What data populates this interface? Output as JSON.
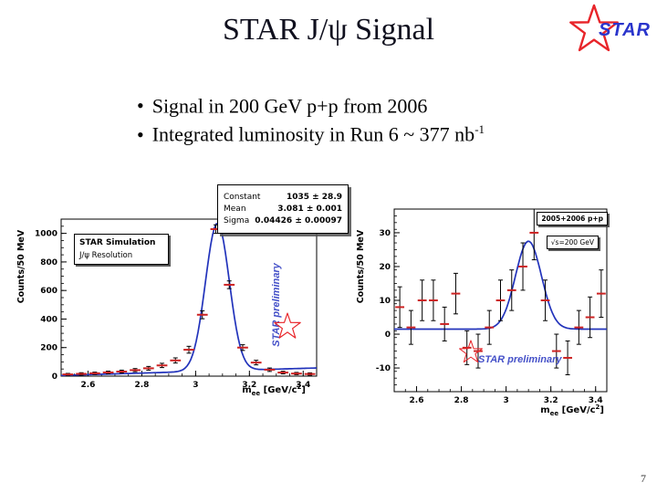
{
  "slide": {
    "title": "STAR J/ψ Signal",
    "page_number": "7",
    "bullet_char": "•",
    "bullets": [
      {
        "text": "Signal in 200 GeV p+p from 2006",
        "sup": ""
      },
      {
        "text": "Integrated luminosity in Run 6 ~ 377 nb",
        "sup": "-1"
      }
    ],
    "logo_text": "STAR",
    "colors": {
      "star_red": "#e8252a",
      "logo_blue": "#2a35cc",
      "preliminary_blue": "#4450c8",
      "fit_blue": "#2233bb",
      "marker_red": "#cc2222"
    }
  },
  "chart_data": [
    {
      "type": "scatter",
      "name": "jpsi-simulation-resolution",
      "ylabel": "Counts/50 MeV",
      "xlabel": "mee [GeV/c2]",
      "xlabel_parts": [
        {
          "t": "m"
        },
        {
          "t": "ee",
          "style": "sub"
        },
        {
          "t": " [GeV/c"
        },
        {
          "t": "2",
          "style": "sup"
        },
        {
          "t": "]"
        }
      ],
      "xlim": [
        2.5,
        3.45
      ],
      "ylim": [
        0,
        1100
      ],
      "xticks": [
        2.6,
        2.8,
        3,
        3.2,
        3.4
      ],
      "yticks": [
        0,
        200,
        400,
        600,
        800,
        1000
      ],
      "xminor": 0.05,
      "yminor": 50,
      "bin_half": 0.02,
      "legend": [
        "STAR Simulation",
        "J/ψ Resolution"
      ],
      "stats": [
        {
          "label": "Constant",
          "value": "1035 ± 28.9"
        },
        {
          "label": "Mean",
          "value": "3.081 ± 0.001"
        },
        {
          "label": "Sigma",
          "value": "0.04426 ± 0.00097"
        }
      ],
      "fit": {
        "type": "gaussian",
        "mean": 3.081,
        "sigma": 0.04426,
        "amplitude": 1035,
        "baseline_start": 5,
        "baseline_slope": 55
      },
      "points": [
        [
          2.525,
          12,
          7
        ],
        [
          2.575,
          16,
          8
        ],
        [
          2.625,
          20,
          8
        ],
        [
          2.675,
          26,
          9
        ],
        [
          2.725,
          32,
          10
        ],
        [
          2.775,
          42,
          11
        ],
        [
          2.825,
          55,
          13
        ],
        [
          2.875,
          75,
          15
        ],
        [
          2.925,
          110,
          18
        ],
        [
          2.975,
          185,
          24
        ],
        [
          3.025,
          430,
          28
        ],
        [
          3.075,
          1030,
          30
        ],
        [
          3.125,
          640,
          27
        ],
        [
          3.175,
          200,
          20
        ],
        [
          3.225,
          95,
          16
        ],
        [
          3.275,
          45,
          12
        ],
        [
          3.325,
          25,
          9
        ],
        [
          3.375,
          18,
          8
        ],
        [
          3.425,
          15,
          8
        ]
      ],
      "watermark": "STAR preliminary"
    },
    {
      "type": "scatter",
      "name": "jpsi-signal-data",
      "ylabel": "Counts/50 MeV",
      "xlabel": "mee [GeV/c2]",
      "xlabel_parts": [
        {
          "t": "m"
        },
        {
          "t": "ee",
          "style": "sub"
        },
        {
          "t": " [GeV/c"
        },
        {
          "t": "2",
          "style": "sup"
        },
        {
          "t": "]"
        }
      ],
      "xlim": [
        2.5,
        3.45
      ],
      "ylim": [
        -17,
        37
      ],
      "xticks": [
        2.6,
        2.8,
        3,
        3.2,
        3.4
      ],
      "yticks": [
        -10,
        0,
        10,
        20,
        30
      ],
      "xminor": 0.05,
      "yminor": 2,
      "bin_half": 0.02,
      "legend": [
        "2005+2006 p+p",
        "√s=200 GeV"
      ],
      "fit": {
        "type": "gaussian",
        "mean": 3.1,
        "sigma": 0.058,
        "amplitude": 26,
        "baseline_start": 1.5,
        "baseline_slope": 0
      },
      "points": [
        [
          2.525,
          8,
          6
        ],
        [
          2.575,
          2,
          5
        ],
        [
          2.625,
          10,
          6
        ],
        [
          2.675,
          10,
          6
        ],
        [
          2.725,
          3,
          5
        ],
        [
          2.775,
          12,
          6
        ],
        [
          2.825,
          -4,
          5
        ],
        [
          2.875,
          -5,
          5
        ],
        [
          2.925,
          2,
          5
        ],
        [
          2.975,
          10,
          6
        ],
        [
          3.025,
          13,
          6
        ],
        [
          3.075,
          20,
          7
        ],
        [
          3.125,
          30,
          8
        ],
        [
          3.175,
          10,
          6
        ],
        [
          3.225,
          -5,
          5
        ],
        [
          3.275,
          -7,
          5
        ],
        [
          3.325,
          2,
          5
        ],
        [
          3.375,
          5,
          6
        ],
        [
          3.425,
          12,
          7
        ]
      ],
      "watermark": "STAR preliminary"
    }
  ]
}
